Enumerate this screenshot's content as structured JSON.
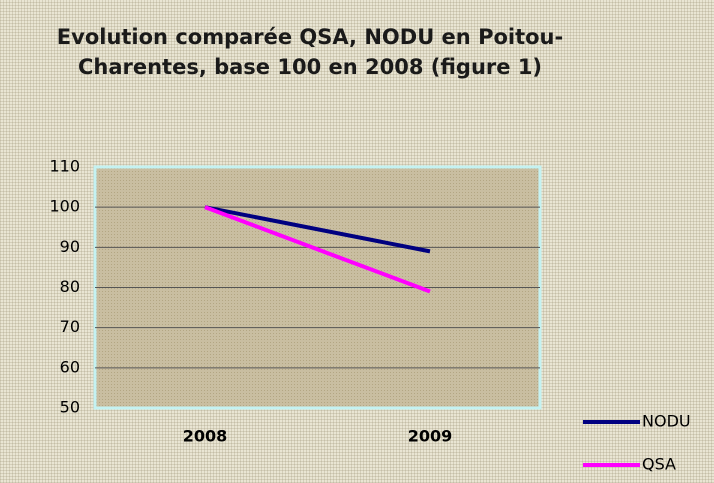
{
  "chart_data": {
    "type": "line",
    "title": "Evolution comparée QSA, NODU en Poitou-Charentes, base 100 en 2008 (figure 1)",
    "categories": [
      "2008",
      "2009"
    ],
    "series": [
      {
        "name": "NODU",
        "color": "#000080",
        "values": [
          100,
          89
        ]
      },
      {
        "name": "QSA",
        "color": "#ff00ff",
        "values": [
          100,
          79
        ]
      }
    ],
    "ylim": [
      50,
      110
    ],
    "yticks": [
      50,
      60,
      70,
      80,
      90,
      100,
      110
    ],
    "grid": true,
    "legend": "right"
  }
}
